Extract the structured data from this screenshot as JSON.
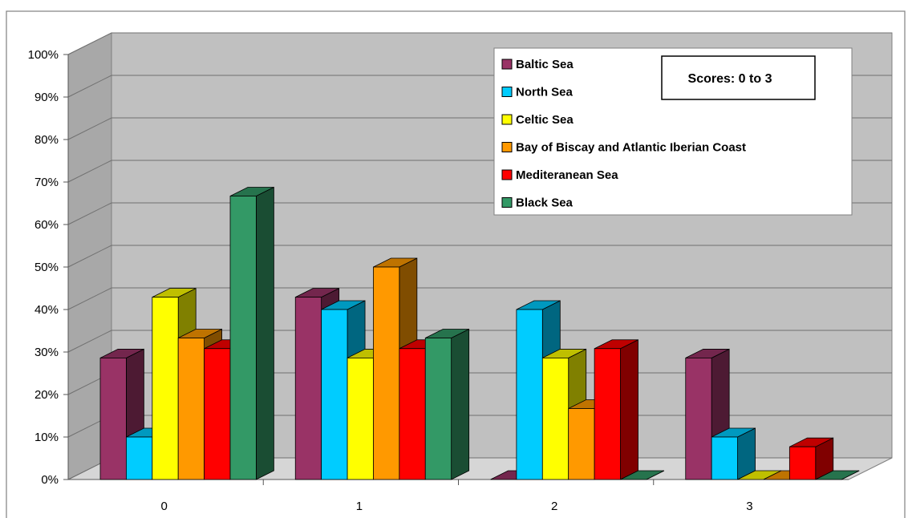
{
  "chart_data": {
    "type": "bar",
    "subtype": "3d-clustered-column",
    "categories": [
      "0",
      "1",
      "2",
      "3"
    ],
    "y_ticks": [
      "0%",
      "10%",
      "20%",
      "30%",
      "40%",
      "50%",
      "60%",
      "70%",
      "80%",
      "90%",
      "100%"
    ],
    "ylim": [
      0,
      100
    ],
    "grid": true,
    "legend_position": "top-right",
    "annotation": "Scores: 0 to 3",
    "series": [
      {
        "name": "Baltic Sea",
        "color": "#993366",
        "values": [
          28.6,
          42.9,
          0,
          28.6
        ]
      },
      {
        "name": "North Sea",
        "color": "#00ccff",
        "values": [
          10,
          40,
          40,
          10
        ]
      },
      {
        "name": "Celtic Sea",
        "color": "#ffff00",
        "values": [
          42.9,
          28.6,
          28.6,
          0
        ]
      },
      {
        "name": "Bay of Biscay and Atlantic Iberian Coast",
        "color": "#ff9900",
        "values": [
          33.3,
          50,
          16.7,
          0
        ]
      },
      {
        "name": "Mediteranean Sea",
        "color": "#ff0000",
        "values": [
          30.8,
          30.8,
          30.8,
          7.7
        ]
      },
      {
        "name": "Black Sea",
        "color": "#339966",
        "values": [
          66.7,
          33.3,
          0,
          0
        ]
      }
    ]
  }
}
